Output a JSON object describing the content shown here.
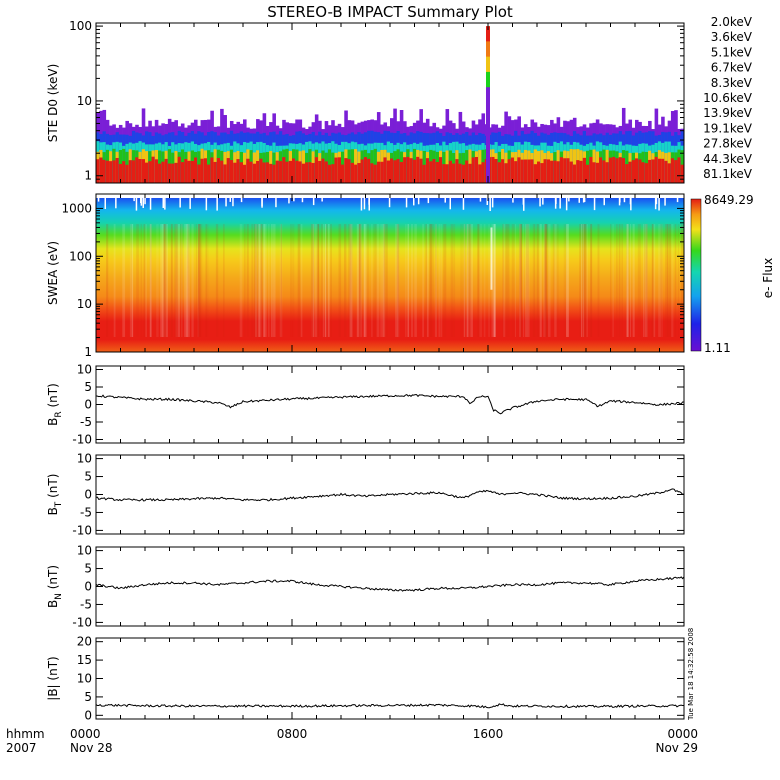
{
  "title": "STEREO-B IMPACT Summary Plot",
  "timestamp": "Tue Mar 18 14:32:58 2008",
  "colors": {
    "axis": "#000000",
    "background": "#ffffff"
  },
  "time_axis": {
    "ticks": [
      {
        "hours": 0,
        "time": "0000",
        "date": "Nov 28"
      },
      {
        "hours": 8,
        "time": "0800",
        "date": ""
      },
      {
        "hours": 16,
        "time": "1600",
        "date": ""
      },
      {
        "hours": 24,
        "time": "0000",
        "date": "Nov 29"
      }
    ],
    "left_labels": [
      "hhmm",
      "2007"
    ],
    "range_hours": [
      0,
      24
    ]
  },
  "chart_data": [
    {
      "type": "bar",
      "ylabel": "STE D0 (keV)",
      "ylim": [
        0.8,
        110
      ],
      "ylog": true,
      "yticks": [
        {
          "v": 1,
          "label": "1"
        },
        {
          "v": 10,
          "label": "10"
        },
        {
          "v": 100,
          "label": "100"
        }
      ],
      "legend_position": "right",
      "series": [
        {
          "name": "2.0keV",
          "color": "#7a1fd6"
        },
        {
          "name": "3.6keV",
          "color": "#3510c8"
        },
        {
          "name": "5.1keV",
          "color": "#1e43e6"
        },
        {
          "name": "6.7keV",
          "color": "#14a9e8"
        },
        {
          "name": "8.3keV",
          "color": "#16d4c8"
        },
        {
          "name": "10.6keV",
          "color": "#1bd21b"
        },
        {
          "name": "13.9keV",
          "color": "#22c01a"
        },
        {
          "name": "19.1keV",
          "color": "#c8d21a"
        },
        {
          "name": "27.8keV",
          "color": "#f0c414"
        },
        {
          "name": "44.3keV",
          "color": "#f07a14"
        },
        {
          "name": "81.1keV",
          "color": "#e41e14"
        }
      ],
      "spike": {
        "hours": 16.0,
        "peak": 100
      }
    },
    {
      "type": "heatmap",
      "ylabel": "SWEA (eV)",
      "ylim": [
        1,
        2000
      ],
      "ylog": true,
      "yticks": [
        {
          "v": 1,
          "label": "1"
        },
        {
          "v": 10,
          "label": "10"
        },
        {
          "v": 100,
          "label": "100"
        },
        {
          "v": 1000,
          "label": "1000"
        }
      ],
      "colorbar": {
        "label": "e- Flux",
        "max_label": "8649.29",
        "min_label": "1.11"
      }
    },
    {
      "type": "line",
      "ylabel": "B_R (nT)",
      "ylim": [
        -11,
        11
      ],
      "yticks": [
        {
          "v": 10,
          "label": "10"
        },
        {
          "v": 5,
          "label": "5"
        },
        {
          "v": 0,
          "label": "0"
        },
        {
          "v": -5,
          "label": "-5"
        },
        {
          "v": -10,
          "label": "-10"
        }
      ],
      "x": [
        0,
        1,
        2,
        3,
        4,
        5,
        5.5,
        6,
        7,
        8,
        9,
        10,
        11,
        12,
        13,
        14,
        15,
        15.3,
        15.6,
        16,
        16.2,
        16.5,
        17,
        18,
        19,
        20,
        20.5,
        21,
        22,
        23,
        24
      ],
      "y": [
        2.5,
        2,
        1.5,
        1.5,
        1,
        0.5,
        -0.8,
        0.8,
        1.2,
        1.6,
        1.8,
        2.1,
        2.3,
        2.5,
        2.6,
        2.3,
        2.3,
        0.2,
        2.2,
        2.3,
        -1.5,
        -2.5,
        -1,
        1,
        1.5,
        1.4,
        -0.5,
        1,
        0.6,
        -0.1,
        0.5
      ]
    },
    {
      "type": "line",
      "ylabel": "B_T (nT)",
      "ylim": [
        -11,
        11
      ],
      "yticks": [
        {
          "v": 10,
          "label": "10"
        },
        {
          "v": 5,
          "label": "5"
        },
        {
          "v": 0,
          "label": "0"
        },
        {
          "v": -5,
          "label": "-5"
        },
        {
          "v": -10,
          "label": "-10"
        }
      ],
      "x": [
        0,
        1,
        2,
        3,
        4,
        5,
        6,
        7,
        8,
        9,
        10,
        11,
        12,
        13,
        14,
        15,
        15.5,
        16,
        16.5,
        17,
        18,
        19,
        20,
        21,
        22,
        23,
        23.5,
        24
      ],
      "y": [
        -1,
        -1.5,
        -1.5,
        -1.5,
        -1.2,
        -1,
        -1.5,
        -1.5,
        -1,
        -0.5,
        0,
        -0.5,
        0,
        0.3,
        0.5,
        -1,
        0.5,
        1,
        0,
        0.5,
        0,
        -1,
        -1.2,
        -1,
        -0.5,
        0.5,
        1.5,
        0
      ]
    },
    {
      "type": "line",
      "ylabel": "B_N (nT)",
      "ylim": [
        -11,
        11
      ],
      "yticks": [
        {
          "v": 10,
          "label": "10"
        },
        {
          "v": 5,
          "label": "5"
        },
        {
          "v": 0,
          "label": "0"
        },
        {
          "v": -5,
          "label": "-5"
        },
        {
          "v": -10,
          "label": "-10"
        }
      ],
      "x": [
        0,
        1,
        2,
        3,
        4,
        5,
        6,
        7,
        8,
        9,
        10,
        11,
        12,
        13,
        14,
        15,
        16,
        17,
        18,
        19,
        20,
        21,
        22,
        23,
        24
      ],
      "y": [
        0.5,
        -0.5,
        0.5,
        1,
        1,
        0.5,
        1,
        1.5,
        1.5,
        0.5,
        0,
        -0.5,
        -1,
        -1,
        -0.5,
        -0.5,
        0,
        0.5,
        0.5,
        1,
        1,
        0.5,
        1.5,
        2,
        2.5
      ]
    },
    {
      "type": "line",
      "ylabel": "|B| (nT)",
      "ylim": [
        -1,
        21
      ],
      "yticks": [
        {
          "v": 20,
          "label": "20"
        },
        {
          "v": 15,
          "label": "15"
        },
        {
          "v": 10,
          "label": "10"
        },
        {
          "v": 5,
          "label": "5"
        },
        {
          "v": 0,
          "label": "0"
        }
      ],
      "x": [
        0,
        2,
        4,
        6,
        8,
        10,
        12,
        14,
        15.5,
        16,
        16.5,
        17,
        18,
        20,
        22,
        24
      ],
      "y": [
        2.8,
        2.6,
        2.5,
        2.5,
        2.5,
        2.6,
        2.7,
        2.8,
        2.5,
        2.2,
        3,
        2.5,
        2.5,
        2.4,
        2.5,
        2.6
      ]
    }
  ]
}
